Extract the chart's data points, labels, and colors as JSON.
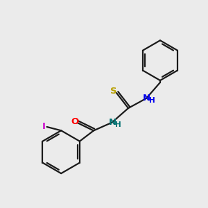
{
  "background_color": "#ebebeb",
  "bond_color": "#1a1a1a",
  "atom_colors": {
    "S": "#b8a000",
    "O": "#ff0000",
    "N_blue": "#0000ee",
    "N_teal": "#007070",
    "I": "#cc00cc"
  },
  "figsize": [
    3.0,
    3.0
  ],
  "dpi": 100,
  "xlim": [
    0,
    10
  ],
  "ylim": [
    0,
    10
  ]
}
